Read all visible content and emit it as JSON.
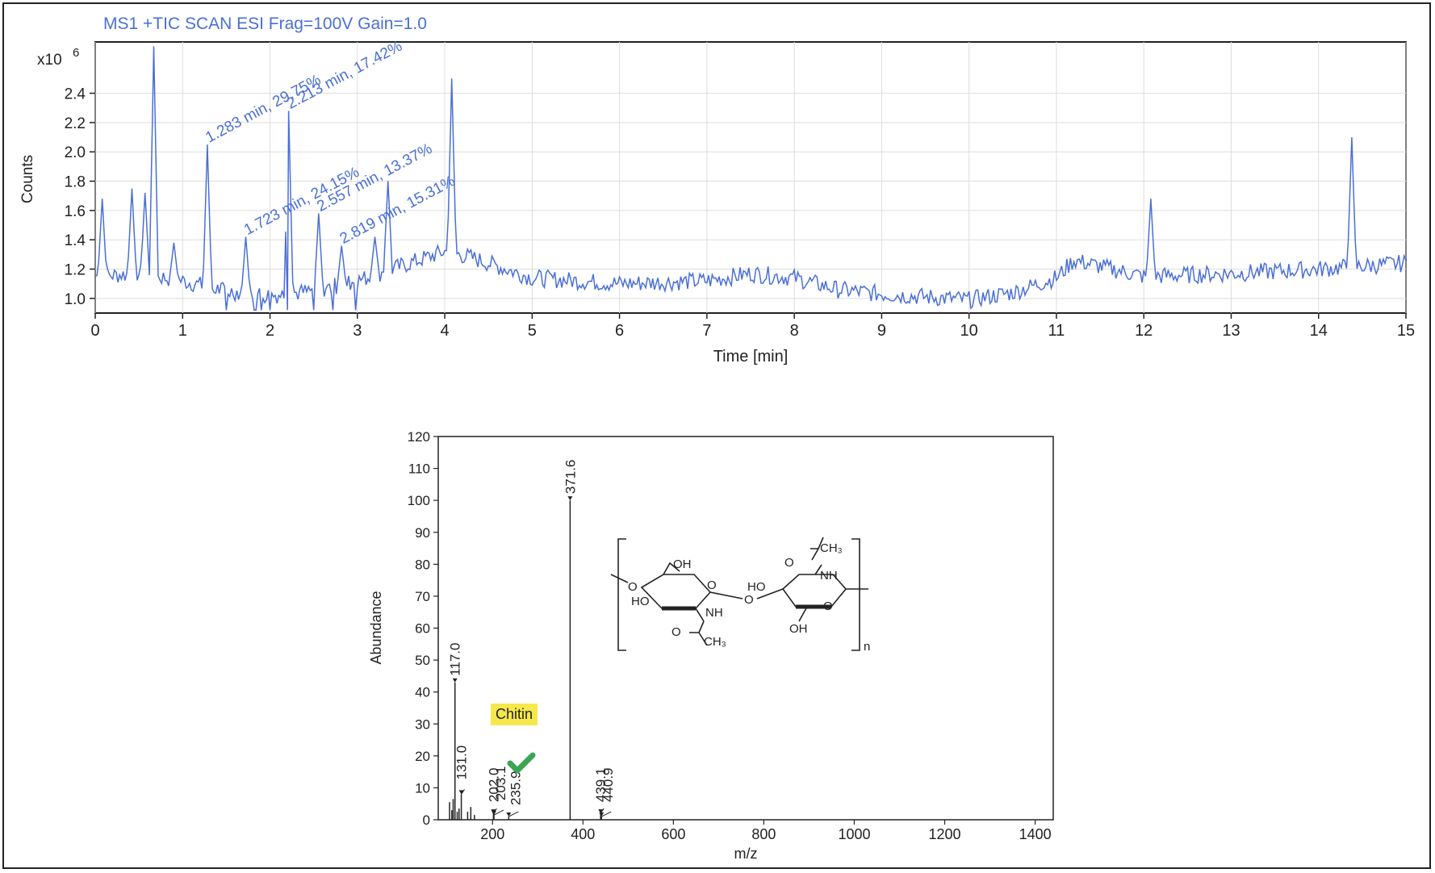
{
  "chart_data": [
    {
      "type": "line",
      "title": "MS1 +TIC SCAN ESI Frag=100V Gain=1.0",
      "xlabel": "Time [min]",
      "ylabel": "Counts",
      "y_multiplier": "x10",
      "y_exponent": "6",
      "xlim": [
        0,
        15
      ],
      "ylim": [
        0.9,
        2.75
      ],
      "x_ticks": [
        0,
        1,
        2,
        3,
        4,
        5,
        6,
        7,
        8,
        9,
        10,
        11,
        12,
        13,
        14,
        15
      ],
      "y_ticks": [
        1.0,
        1.2,
        1.4,
        1.6,
        1.8,
        2.0,
        2.2,
        2.4
      ],
      "grid": true,
      "color": "#4a6fd6",
      "baseline": [
        [
          0,
          1.15
        ],
        [
          0.5,
          1.17
        ],
        [
          1.0,
          1.12
        ],
        [
          1.5,
          1.05
        ],
        [
          2.0,
          1.02
        ],
        [
          2.5,
          1.05
        ],
        [
          3.0,
          1.12
        ],
        [
          3.5,
          1.22
        ],
        [
          4.0,
          1.32
        ],
        [
          4.3,
          1.28
        ],
        [
          5.0,
          1.14
        ],
        [
          6.0,
          1.1
        ],
        [
          7.0,
          1.12
        ],
        [
          7.5,
          1.17
        ],
        [
          8.0,
          1.14
        ],
        [
          8.5,
          1.06
        ],
        [
          9.0,
          1.03
        ],
        [
          10.0,
          0.99
        ],
        [
          10.5,
          1.04
        ],
        [
          11.0,
          1.14
        ],
        [
          11.2,
          1.26
        ],
        [
          12.0,
          1.15
        ],
        [
          13.0,
          1.17
        ],
        [
          14.0,
          1.2
        ],
        [
          15.0,
          1.24
        ]
      ],
      "peaks": [
        [
          0.08,
          1.68
        ],
        [
          0.42,
          1.75
        ],
        [
          0.57,
          1.72
        ],
        [
          0.67,
          2.72
        ],
        [
          0.9,
          1.38
        ],
        [
          1.283,
          2.05
        ],
        [
          1.723,
          1.42
        ],
        [
          2.213,
          2.28
        ],
        [
          2.557,
          1.58
        ],
        [
          2.819,
          1.36
        ],
        [
          3.2,
          1.42
        ],
        [
          3.35,
          1.8
        ],
        [
          4.08,
          2.5
        ],
        [
          12.08,
          1.68
        ],
        [
          14.38,
          2.1
        ]
      ],
      "annotations": [
        {
          "text": "1.283 min, 29.75%",
          "x": 1.283,
          "y": 2.05
        },
        {
          "text": "2.213 min, 17.42%",
          "x": 2.213,
          "y": 2.28
        },
        {
          "text": "1.723 min, 24.15%",
          "x": 1.723,
          "y": 1.42
        },
        {
          "text": "2.557 min, 13.37%",
          "x": 2.557,
          "y": 1.58
        },
        {
          "text": "2.819 min, 15.31%",
          "x": 2.819,
          "y": 1.36
        }
      ]
    },
    {
      "type": "bar",
      "xlabel": "m/z",
      "ylabel": "Abundance",
      "xlim": [
        80,
        1440
      ],
      "ylim": [
        0,
        120
      ],
      "x_ticks": [
        200,
        400,
        600,
        800,
        1000,
        1200,
        1400
      ],
      "y_ticks": [
        0,
        10,
        20,
        30,
        40,
        50,
        60,
        70,
        80,
        90,
        100,
        110,
        120
      ],
      "labeled_peaks": [
        {
          "mz": 117.0,
          "abundance": 43,
          "label": "117.0"
        },
        {
          "mz": 131.0,
          "abundance": 8,
          "label": "131.0"
        },
        {
          "mz": 202.0,
          "abundance": 2,
          "label": "202.0"
        },
        {
          "mz": 203.1,
          "abundance": 1.5,
          "label": "203.1"
        },
        {
          "mz": 235.9,
          "abundance": 1,
          "label": "235.9"
        },
        {
          "mz": 371.6,
          "abundance": 100,
          "label": "371.6"
        },
        {
          "mz": 439.1,
          "abundance": 2,
          "label": "439.1"
        },
        {
          "mz": 440.9,
          "abundance": 1,
          "label": "440.9"
        }
      ],
      "minor_peaks": [
        {
          "mz": 105,
          "abundance": 5.5
        },
        {
          "mz": 110,
          "abundance": 3
        },
        {
          "mz": 113,
          "abundance": 6.5
        },
        {
          "mz": 122,
          "abundance": 2.5
        },
        {
          "mz": 126,
          "abundance": 3.5
        },
        {
          "mz": 145,
          "abundance": 2.5
        },
        {
          "mz": 152,
          "abundance": 4
        },
        {
          "mz": 160,
          "abundance": 1.5
        }
      ]
    }
  ],
  "highlight_label": "Chitin",
  "check_icon": "check-mark-icon",
  "check_color": "#3aa655",
  "structure": {
    "labels": {
      "oh_top_left": "OH",
      "o_ring_left": "O",
      "o_end_left": "O",
      "ho_left": "HO",
      "nh_left": "NH",
      "o_carbonyl_left": "O",
      "ch3_left": "CH₃",
      "o_glycosidic": "O",
      "ho_right": "HO",
      "o_carbonyl_right": "O",
      "ch3_right": "CH₃",
      "nh_right": "NH",
      "o_ring_right": "O",
      "oh_bottom_right": "OH",
      "repeat_n": "n"
    }
  }
}
